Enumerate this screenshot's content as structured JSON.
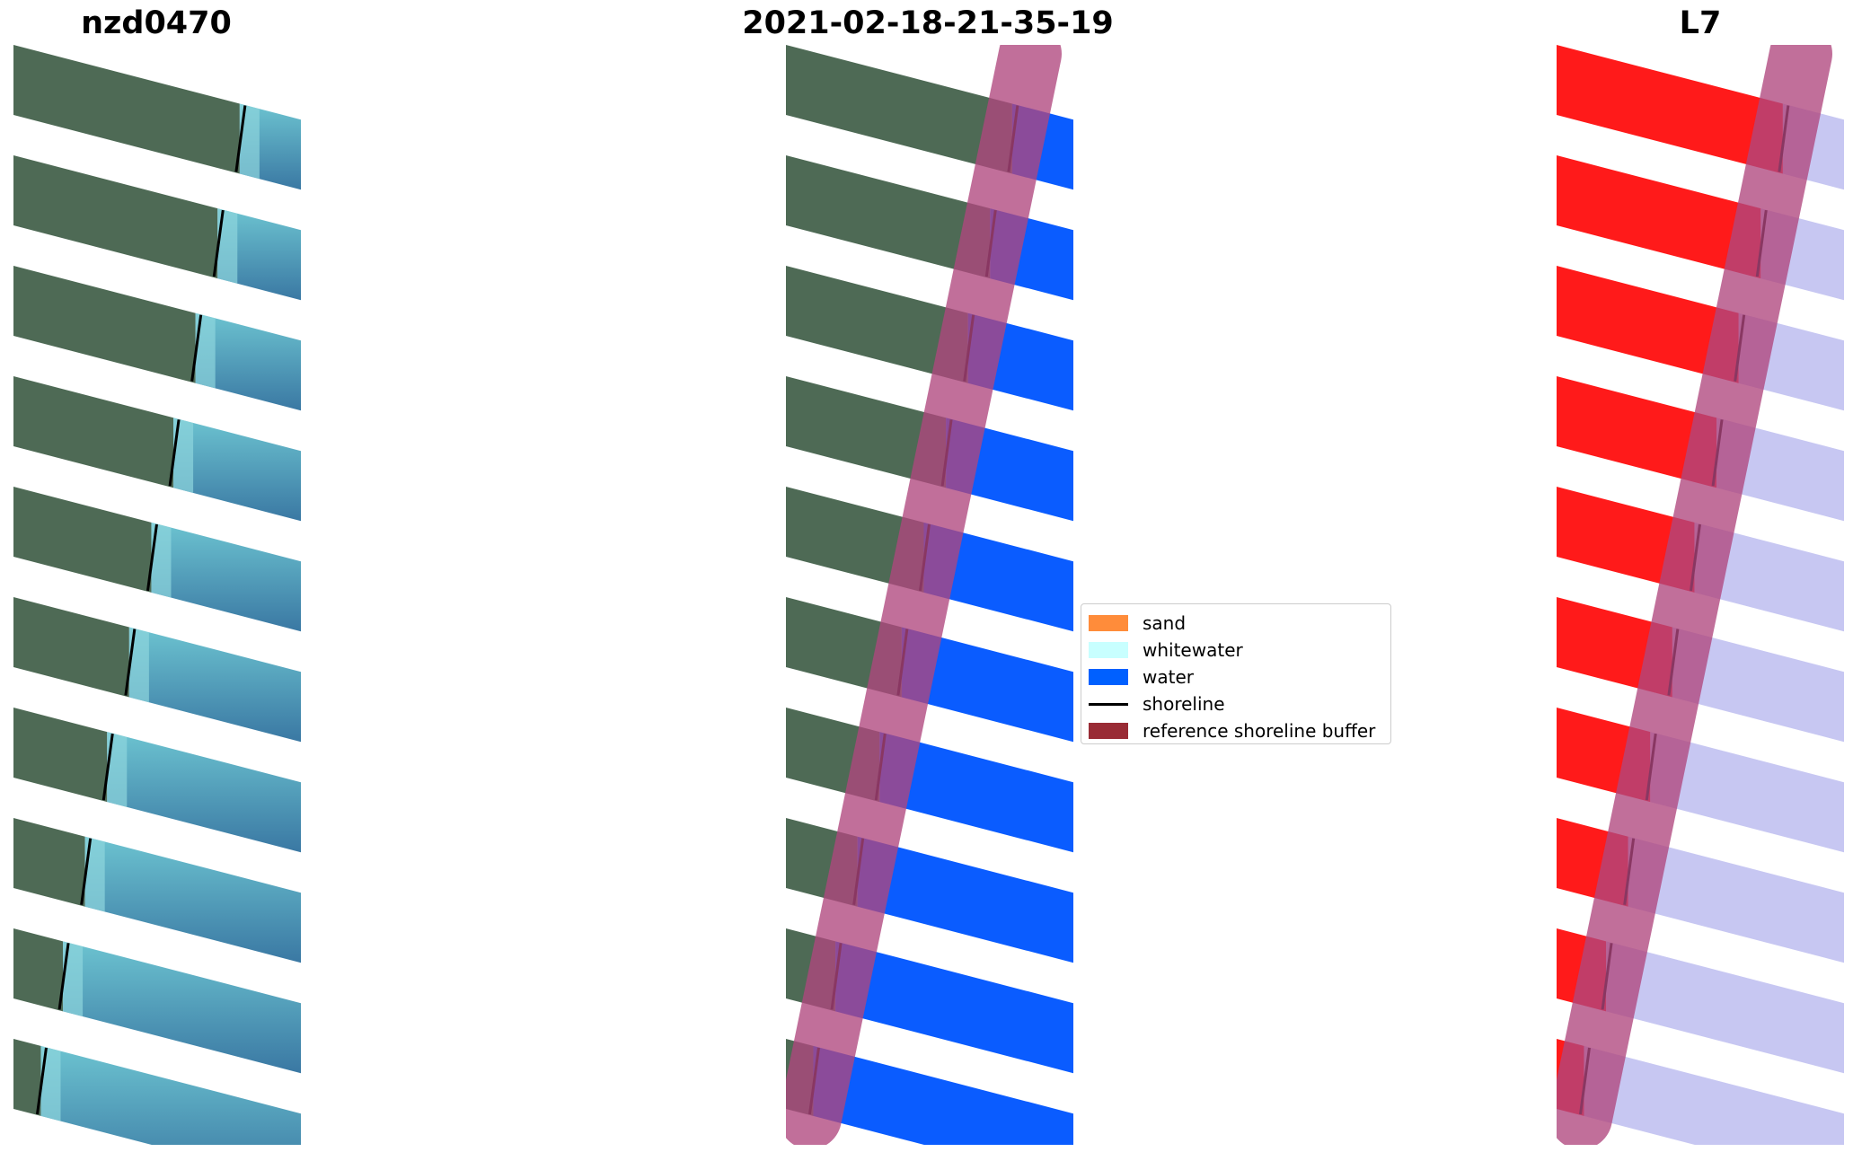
{
  "panels": [
    {
      "title": "nzd0470",
      "kind": "rgb"
    },
    {
      "title": "2021-02-18-21-35-19",
      "kind": "classification"
    },
    {
      "title": "L7",
      "kind": "mndwi"
    }
  ],
  "legend": {
    "entries": [
      {
        "label": "sand",
        "type": "patch",
        "color": "#ff8c3a"
      },
      {
        "label": "whitewater",
        "type": "patch",
        "color": "#c8ffff"
      },
      {
        "label": "water",
        "type": "patch",
        "color": "#0060ff"
      },
      {
        "label": "shoreline",
        "type": "line",
        "color": "#000000"
      },
      {
        "label": "reference shoreline buffer",
        "type": "patch",
        "color": "#992b35"
      }
    ]
  },
  "colors": {
    "land": "#4e6a55",
    "rgb_water": "#3f7fa8",
    "whitewater": "#8fd6dd",
    "class_water": "#0a5cff",
    "buffer": "#b0477e",
    "mndwi_land": "#ff1a1a",
    "mndwi_water": "#c7c7f2",
    "shoreline": "#000000"
  }
}
